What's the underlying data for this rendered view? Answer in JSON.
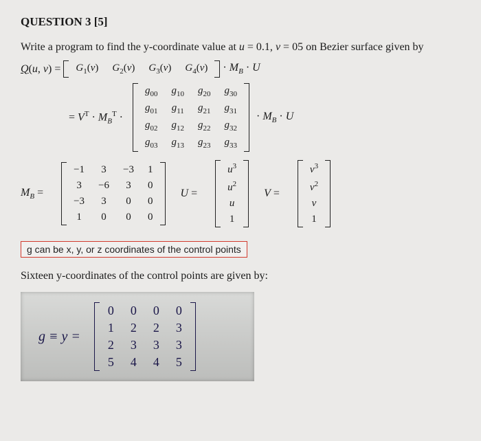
{
  "question": {
    "header": "QUESTION 3 [5]",
    "intro_html": "Write a program to find the y-coordinate value at u = 0.1, v = 05 on Bezier surface given by"
  },
  "eq1": {
    "lhs": "Q(u, v) =",
    "row": [
      "G₁(v)",
      "G₂(v)",
      "G₃(v)",
      "G₄(v)"
    ],
    "rhs": "· M_B · U"
  },
  "eq2": {
    "prefix": "= Vᵀ · M_Bᵀ ·",
    "g_matrix": {
      "type": "matrix",
      "rows": [
        [
          "g₀₀",
          "g₁₀",
          "g₂₀",
          "g₃₀"
        ],
        [
          "g₀₁",
          "g₁₁",
          "g₂₁",
          "g₃₁"
        ],
        [
          "g₀₂",
          "g₁₂",
          "g₂₂",
          "g₃₂"
        ],
        [
          "g₀₃",
          "g₁₃",
          "g₂₃",
          "g₃₃"
        ]
      ]
    },
    "suffix": "· M_B · U"
  },
  "mb": {
    "label": "M_B =",
    "type": "matrix",
    "rows": [
      [
        "−1",
        "3",
        "−3",
        "1"
      ],
      [
        "3",
        "−6",
        "3",
        "0"
      ],
      [
        "−3",
        "3",
        "0",
        "0"
      ],
      [
        "1",
        "0",
        "0",
        "0"
      ]
    ]
  },
  "U": {
    "label": "U =",
    "rows": [
      [
        "u³"
      ],
      [
        "u²"
      ],
      [
        "u"
      ],
      [
        "1"
      ]
    ]
  },
  "V": {
    "label": "V =",
    "rows": [
      [
        "v³"
      ],
      [
        "v²"
      ],
      [
        "v"
      ],
      [
        "1"
      ]
    ]
  },
  "note_box": "g can be x, y, or z coordinates of the control points",
  "sixteen_line": "Sixteen y-coordinates of the control points are given by:",
  "y_matrix": {
    "lhs": "g  ≡  y  =",
    "rows": [
      [
        "0",
        "0",
        "0",
        "0"
      ],
      [
        "1",
        "2",
        "2",
        "3"
      ],
      [
        "2",
        "3",
        "3",
        "3"
      ],
      [
        "5",
        "4",
        "4",
        "5"
      ]
    ]
  },
  "colors": {
    "page_bg": "#ebeae8",
    "text": "#1a1a1a",
    "highlight_border": "#d23a2e",
    "photo_ink": "#1a1648"
  }
}
